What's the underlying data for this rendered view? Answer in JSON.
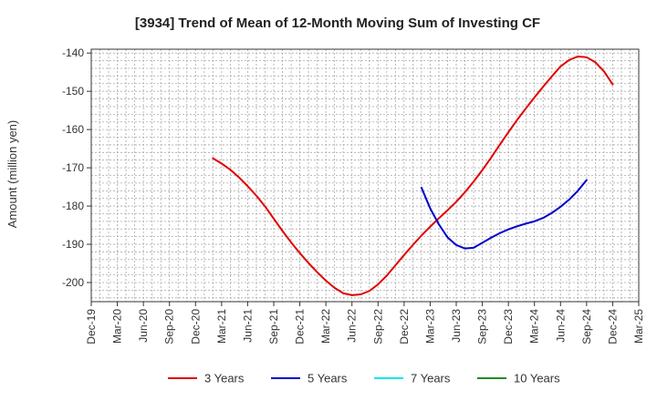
{
  "chart_data": {
    "type": "line",
    "title": "[3934]  Trend of Mean of 12-Month Moving Sum of Investing CF",
    "xlabel": "",
    "ylabel": "Amount (million yen)",
    "ylim": [
      -205,
      -139
    ],
    "yticks": [
      -140,
      -150,
      -160,
      -170,
      -180,
      -190,
      -200
    ],
    "ytick_labels": [
      "-140",
      "-150",
      "-160",
      "-170",
      "-180",
      "-190",
      "-200"
    ],
    "x_tick_labels": [
      "Dec-19",
      "Mar-20",
      "Jun-20",
      "Sep-20",
      "Dec-20",
      "Mar-21",
      "Jun-21",
      "Sep-21",
      "Dec-21",
      "Mar-22",
      "Jun-22",
      "Sep-22",
      "Dec-22",
      "Mar-23",
      "Jun-23",
      "Sep-23",
      "Dec-23",
      "Mar-24",
      "Jun-24",
      "Sep-24",
      "Dec-24",
      "Mar-25"
    ],
    "xlim": [
      "2019-12",
      "2025-03"
    ],
    "grid": true,
    "legend_position": "bottom",
    "series": [
      {
        "name": "3 Years",
        "color": "#e00000",
        "points": [
          [
            "2021-02",
            -167.5
          ],
          [
            "2021-03",
            -168.9
          ],
          [
            "2021-04",
            -170.5
          ],
          [
            "2021-05",
            -172.5
          ],
          [
            "2021-06",
            -174.8
          ],
          [
            "2021-07",
            -177.3
          ],
          [
            "2021-08",
            -180.1
          ],
          [
            "2021-09",
            -183.3
          ],
          [
            "2021-10",
            -186.5
          ],
          [
            "2021-11",
            -189.5
          ],
          [
            "2021-12",
            -192.3
          ],
          [
            "2022-01",
            -194.9
          ],
          [
            "2022-02",
            -197.3
          ],
          [
            "2022-03",
            -199.5
          ],
          [
            "2022-04",
            -201.4
          ],
          [
            "2022-05",
            -202.8
          ],
          [
            "2022-06",
            -203.3
          ],
          [
            "2022-07",
            -203.1
          ],
          [
            "2022-08",
            -202.2
          ],
          [
            "2022-09",
            -200.5
          ],
          [
            "2022-10",
            -198.2
          ],
          [
            "2022-11",
            -195.5
          ],
          [
            "2022-12",
            -192.8
          ],
          [
            "2023-01",
            -190.2
          ],
          [
            "2023-02",
            -187.7
          ],
          [
            "2023-03",
            -185.4
          ],
          [
            "2023-04",
            -183.2
          ],
          [
            "2023-05",
            -181.1
          ],
          [
            "2023-06",
            -178.9
          ],
          [
            "2023-07",
            -176.4
          ],
          [
            "2023-08",
            -173.6
          ],
          [
            "2023-09",
            -170.6
          ],
          [
            "2023-10",
            -167.4
          ],
          [
            "2023-11",
            -164.0
          ],
          [
            "2023-12",
            -160.7
          ],
          [
            "2024-01",
            -157.5
          ],
          [
            "2024-02",
            -154.5
          ],
          [
            "2024-03",
            -151.6
          ],
          [
            "2024-04",
            -148.8
          ],
          [
            "2024-05",
            -146.1
          ],
          [
            "2024-06",
            -143.5
          ],
          [
            "2024-07",
            -141.8
          ],
          [
            "2024-08",
            -140.9
          ],
          [
            "2024-09",
            -141.1
          ],
          [
            "2024-10",
            -142.4
          ],
          [
            "2024-11",
            -144.8
          ],
          [
            "2024-12",
            -148.2
          ]
        ]
      },
      {
        "name": "5 Years",
        "color": "#0000cc",
        "points": [
          [
            "2023-02",
            -175.2
          ],
          [
            "2023-03",
            -180.6
          ],
          [
            "2023-04",
            -184.8
          ],
          [
            "2023-05",
            -188.2
          ],
          [
            "2023-06",
            -190.2
          ],
          [
            "2023-07",
            -191.1
          ],
          [
            "2023-08",
            -190.9
          ],
          [
            "2023-09",
            -189.6
          ],
          [
            "2023-10",
            -188.3
          ],
          [
            "2023-11",
            -187.1
          ],
          [
            "2023-12",
            -186.1
          ],
          [
            "2024-01",
            -185.3
          ],
          [
            "2024-02",
            -184.6
          ],
          [
            "2024-03",
            -184.0
          ],
          [
            "2024-04",
            -183.1
          ],
          [
            "2024-05",
            -181.8
          ],
          [
            "2024-06",
            -180.2
          ],
          [
            "2024-07",
            -178.3
          ],
          [
            "2024-08",
            -176.0
          ],
          [
            "2024-09",
            -173.2
          ]
        ]
      },
      {
        "name": "7 Years",
        "color": "#00e5ee",
        "points": []
      },
      {
        "name": "10 Years",
        "color": "#228b22",
        "points": []
      }
    ]
  }
}
